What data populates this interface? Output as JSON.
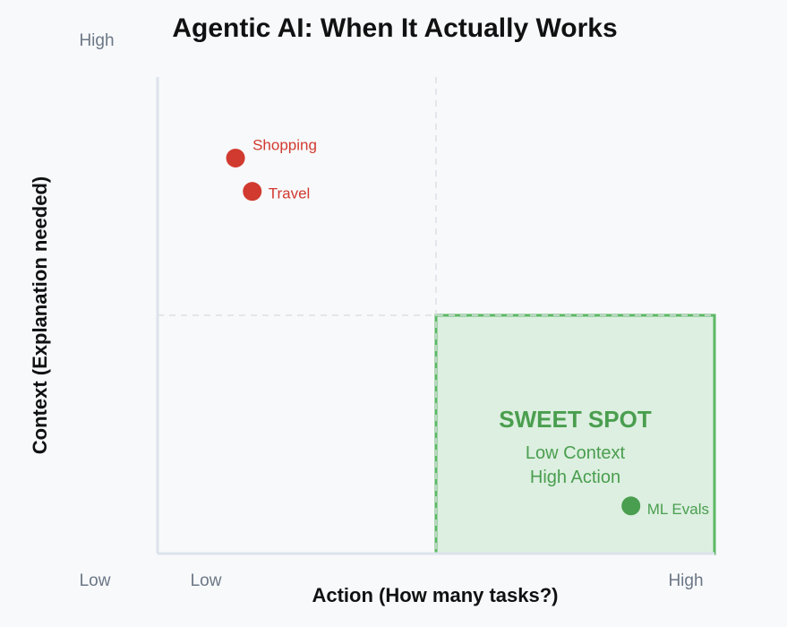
{
  "chart_data": {
    "type": "scatter",
    "title": "Agentic AI: When It Actually Works",
    "xlabel": "Action (How many tasks?)",
    "ylabel": "Context (Explanation needed)",
    "xlim": [
      0,
      10
    ],
    "ylim": [
      0,
      10
    ],
    "x_tick_labels": {
      "low": "Low",
      "high": "High"
    },
    "y_tick_labels": {
      "low": "Low",
      "high": "High"
    },
    "quadrant_dividers": {
      "x": 5,
      "y": 5
    },
    "grid": false,
    "points": [
      {
        "label": "Shopping",
        "x": 1.4,
        "y": 8.3,
        "color": "#d13a2f"
      },
      {
        "label": "Travel",
        "x": 1.7,
        "y": 7.6,
        "color": "#d13a2f"
      },
      {
        "label": "ML Evals",
        "x": 8.5,
        "y": 1.0,
        "color": "#4a9e4f"
      }
    ],
    "highlight_region": {
      "x_range": [
        5,
        10
      ],
      "y_range": [
        0,
        5
      ],
      "title": "SWEET SPOT",
      "lines": [
        "Low Context",
        "High Action"
      ],
      "fill": "#dcefe0",
      "stroke": "#5cb865",
      "text_color": "#4a9e4f"
    }
  }
}
